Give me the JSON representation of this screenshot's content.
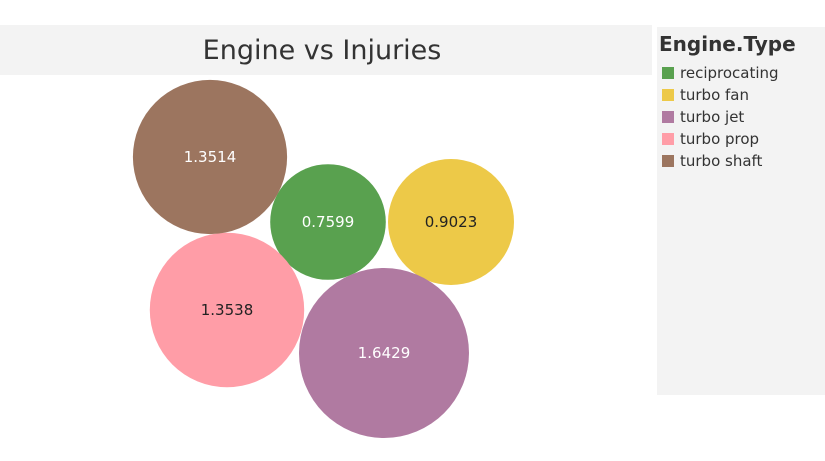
{
  "chart_data": {
    "type": "bubble",
    "title": "Engine vs Injuries",
    "legend_title": "Engine.Type",
    "legend_position": "right",
    "categories": [
      "reciprocating",
      "turbo fan",
      "turbo jet",
      "turbo prop",
      "turbo shaft"
    ],
    "values": [
      0.7599,
      0.9023,
      1.6429,
      1.3538,
      1.3514
    ],
    "value_labels": [
      "0.7599",
      "0.9023",
      "1.6429",
      "1.3538",
      "1.3514"
    ],
    "colors": [
      "#59a14f",
      "#edc948",
      "#b07aa1",
      "#ff9da7",
      "#9c755f"
    ],
    "label_colors": [
      "#ffffff",
      "#222222",
      "#ffffff",
      "#222222",
      "#ffffff"
    ]
  }
}
